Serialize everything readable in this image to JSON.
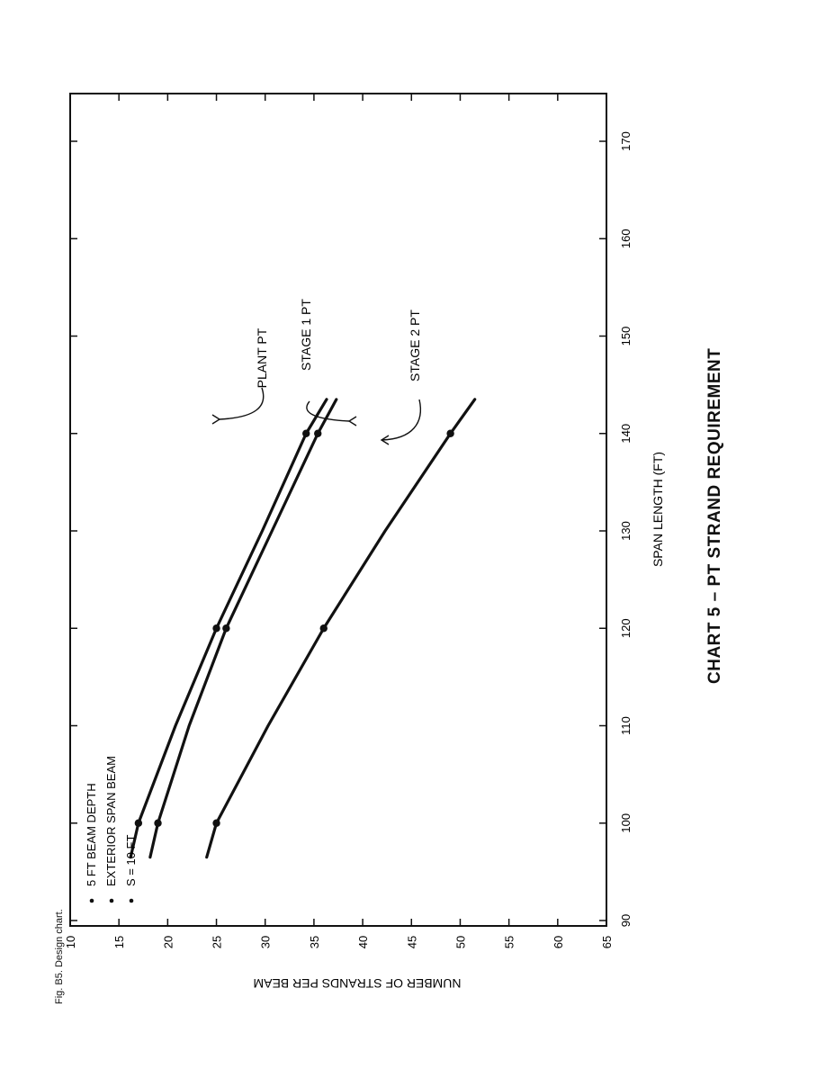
{
  "figure_caption": "Fig. B5. Design chart.",
  "chart_data": {
    "type": "line",
    "title": "CHART 5 – PT STRAND REQUIREMENT",
    "xlabel": "SPAN LENGTH (FT)",
    "ylabel": "NUMBER OF STRANDS PER BEAM",
    "xlim": [
      90,
      175
    ],
    "ylim": [
      10,
      65
    ],
    "xticks": [
      90,
      100,
      110,
      120,
      130,
      140,
      150,
      160,
      170
    ],
    "yticks": [
      10,
      15,
      20,
      25,
      30,
      35,
      40,
      45,
      50,
      55,
      60,
      65
    ],
    "grid": false,
    "orientation": "rotated-90-ccw",
    "legend_notes": [
      "5 FT BEAM DEPTH",
      "EXTERIOR SPAN BEAM",
      "S = 10 FT"
    ],
    "series": [
      {
        "name": "PLANT PT",
        "x": [
          96.5,
          100,
          110,
          120,
          130,
          140,
          143.5
        ],
        "y": [
          24,
          25,
          30.3,
          36,
          42.3,
          49,
          51.5
        ],
        "markers_x": [
          100,
          120,
          140
        ],
        "markers_y": [
          25,
          36,
          49
        ]
      },
      {
        "name": "STAGE 1 PT",
        "x": [
          96.5,
          100,
          110,
          120,
          130,
          140,
          143.5
        ],
        "y": [
          18.2,
          19,
          22.2,
          26,
          30.7,
          35.4,
          37.3
        ],
        "markers_x": [
          100,
          120,
          140
        ],
        "markers_y": [
          19,
          26,
          35.4
        ]
      },
      {
        "name": "STAGE 2 PT",
        "x": [
          96.5,
          100,
          110,
          120,
          130,
          140,
          143.5
        ],
        "y": [
          16.2,
          17,
          20.8,
          25,
          29.7,
          34.2,
          36.3
        ],
        "markers_x": [
          100,
          120,
          140
        ],
        "markers_y": [
          17,
          25,
          34.2
        ]
      }
    ]
  }
}
